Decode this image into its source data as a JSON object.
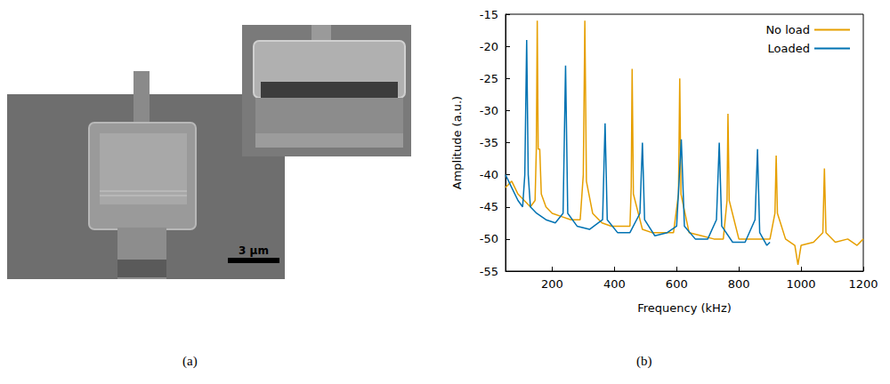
{
  "image_panel": {
    "label": "(a)",
    "scale_bar": "3 μm"
  },
  "chart_data": {
    "type": "line",
    "panel_label": "(b)",
    "x_label": "Frequency (kHz)",
    "y_label": "Amplitude (a.u.)",
    "xlim": [
      50,
      1200
    ],
    "xticks": [
      200,
      400,
      600,
      800,
      1000,
      1200
    ],
    "ylim": [
      -55,
      -15
    ],
    "yticks": [
      -55,
      -50,
      -45,
      -40,
      -35,
      -30,
      -25,
      -20,
      -15
    ],
    "grid": false,
    "legend": "upper right",
    "series": [
      {
        "name": "No load",
        "color": "#e69f00",
        "x": [
          50,
          70,
          90,
          110,
          130,
          145,
          149,
          152,
          155,
          160,
          165,
          180,
          200,
          230,
          260,
          290,
          300,
          305,
          310,
          330,
          360,
          390,
          420,
          450,
          454,
          457,
          461,
          490,
          520,
          560,
          590,
          606,
          610,
          614,
          640,
          680,
          720,
          750,
          762,
          765,
          769,
          800,
          850,
          900,
          916,
          920,
          924,
          950,
          980,
          990,
          1000,
          1040,
          1070,
          1075,
          1080,
          1110,
          1150,
          1180,
          1200
        ],
        "values": [
          -42,
          -41,
          -43,
          -44,
          -45,
          -44,
          -36,
          -16,
          -36,
          -36,
          -43,
          -45,
          -46,
          -46.5,
          -47,
          -47,
          -40,
          -16,
          -41,
          -46,
          -47.5,
          -48,
          -48,
          -48,
          -42,
          -23.5,
          -43,
          -48.5,
          -49,
          -49,
          -49,
          -43,
          -25,
          -43,
          -49,
          -49.5,
          -50,
          -50,
          -44,
          -30.5,
          -44,
          -50,
          -50,
          -50,
          -46,
          -37,
          -46,
          -50,
          -51,
          -54,
          -51,
          -50.5,
          -49,
          -39,
          -49,
          -50.5,
          -50,
          -51,
          -50
        ]
      },
      {
        "name": "Loaded",
        "color": "#0072b2",
        "x": [
          50,
          70,
          90,
          105,
          112,
          118,
          123,
          130,
          150,
          180,
          210,
          235,
          243,
          250,
          280,
          320,
          362,
          370,
          377,
          410,
          450,
          482,
          490,
          497,
          530,
          570,
          600,
          615,
          625,
          660,
          700,
          728,
          737,
          745,
          780,
          820,
          852,
          860,
          867,
          890,
          900
        ],
        "values": [
          -40,
          -42,
          -44,
          -45,
          -40,
          -19,
          -40,
          -45,
          -46,
          -47,
          -47.5,
          -46,
          -23,
          -46,
          -48,
          -48.5,
          -47,
          -32,
          -47,
          -49,
          -49,
          -46,
          -35,
          -47,
          -49.5,
          -49,
          -48,
          -34.5,
          -48,
          -50,
          -50,
          -47,
          -35,
          -48,
          -50.5,
          -50.5,
          -47,
          -36,
          -49,
          -51,
          -50.5
        ]
      }
    ]
  }
}
